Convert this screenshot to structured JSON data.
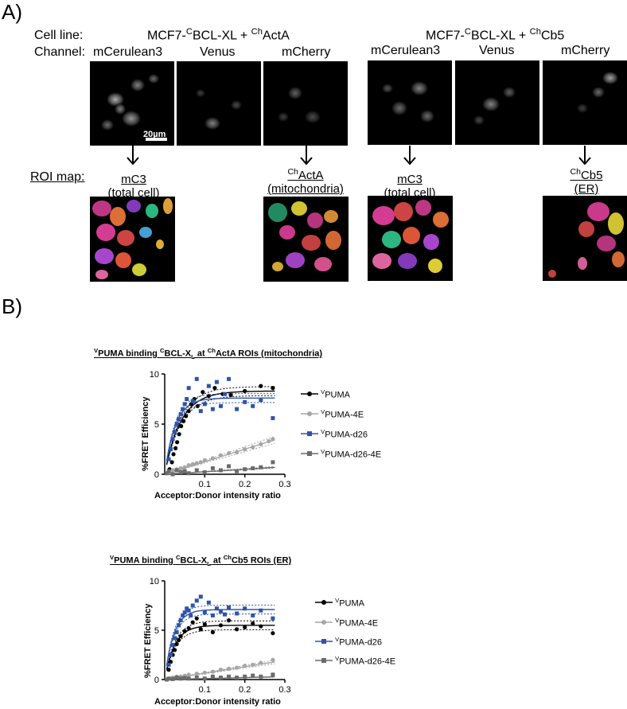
{
  "panel_a": {
    "letter": "A)",
    "row_labels": {
      "cell_line": "Cell line:",
      "channel": "Channel:",
      "roi_map": "ROI map:"
    },
    "groups": [
      {
        "base": "MCF7-",
        "sup1": "C",
        "mid": "BCL-XL + ",
        "sup2": "Ch",
        "tail": "ActA",
        "channels": [
          "mCerulean3",
          "Venus",
          "mCherry"
        ]
      },
      {
        "base": "MCF7-",
        "sup1": "C",
        "mid": "BCL-XL + ",
        "sup2": "Ch",
        "tail": "Cb5",
        "channels": [
          "mCerulean3",
          "Venus",
          "mCherry"
        ]
      }
    ],
    "scale_bar": "20µm",
    "roi_maps": [
      {
        "pre": "",
        "main": "mC3",
        "sub": "(total cell)"
      },
      {
        "pre": "Ch",
        "main": "ActA",
        "sub": "(mitochondria)"
      },
      {
        "pre": "",
        "main": "mC3",
        "sub": "(total cell)"
      },
      {
        "pre": "Ch",
        "main": "Cb5",
        "sub": "(ER)"
      }
    ]
  },
  "panel_b": {
    "letter": "B)",
    "legend": [
      {
        "sup": "V",
        "text": "PUMA",
        "color": "#000000",
        "marker": "circle"
      },
      {
        "sup": "V",
        "text": "PUMA-4E",
        "color": "#a6a6a6",
        "marker": "circle"
      },
      {
        "sup": "V",
        "text": "PUMA-d26",
        "color": "#2f54a8",
        "marker": "square"
      },
      {
        "sup": "V",
        "text": "PUMA-d26-4E",
        "color": "#6b6b6b",
        "marker": "square"
      }
    ]
  },
  "chart_data": [
    {
      "type": "scatter",
      "title": {
        "p1": "V",
        "p2": "PUMA binding ",
        "p3": "C",
        "p4": "BCL-X",
        "p5": "L",
        "p6": " at ",
        "p7": "Ch",
        "p8": "ActA ROIs (mitochondria)"
      },
      "xlabel": "Acceptor:Donor intensity ratio",
      "ylabel": "%FRET Efficiency",
      "xlim": [
        0,
        0.3
      ],
      "ylim": [
        0,
        10
      ],
      "xticks": [
        0.1,
        0.2,
        0.3
      ],
      "xtick_labels": [
        "0.1",
        "0.2",
        "0.3"
      ],
      "yticks": [
        0,
        5,
        10
      ],
      "ytick_labels": [
        "0",
        "5",
        "10"
      ],
      "series": [
        {
          "name": "VPUMA",
          "color": "#000000",
          "marker": "circle",
          "fit": {
            "max": 8.3,
            "k": 0.04
          },
          "x": [
            0.012,
            0.018,
            0.022,
            0.027,
            0.031,
            0.036,
            0.041,
            0.047,
            0.053,
            0.06,
            0.066,
            0.074,
            0.082,
            0.095,
            0.11,
            0.125,
            0.145,
            0.165,
            0.2,
            0.24,
            0.27
          ],
          "y": [
            0.5,
            1.2,
            2.0,
            2.6,
            3.2,
            4.0,
            4.8,
            5.3,
            5.8,
            6.3,
            7.0,
            7.5,
            6.8,
            8.2,
            7.8,
            8.6,
            8.0,
            7.9,
            8.3,
            8.8,
            8.6
          ]
        },
        {
          "name": "VPUMA-4E",
          "color": "#a6a6a6",
          "marker": "circle",
          "fit": {
            "slope": 12.5
          },
          "x": [
            0.01,
            0.02,
            0.03,
            0.04,
            0.05,
            0.06,
            0.07,
            0.08,
            0.09,
            0.1,
            0.12,
            0.14,
            0.16,
            0.18,
            0.2,
            0.22,
            0.24,
            0.26,
            0.27
          ],
          "y": [
            0.2,
            0.4,
            0.5,
            0.6,
            0.7,
            0.9,
            1.0,
            1.1,
            1.2,
            1.4,
            1.6,
            1.9,
            2.1,
            2.2,
            2.5,
            2.7,
            3.0,
            3.3,
            3.5
          ]
        },
        {
          "name": "VPUMA-d26",
          "color": "#2f54a8",
          "marker": "square",
          "fit": {
            "max": 7.6,
            "k": 0.026
          },
          "x": [
            0.01,
            0.015,
            0.02,
            0.025,
            0.03,
            0.035,
            0.04,
            0.045,
            0.05,
            0.055,
            0.06,
            0.07,
            0.08,
            0.09,
            0.1,
            0.11,
            0.12,
            0.13,
            0.14,
            0.15,
            0.16,
            0.18,
            0.2,
            0.22,
            0.24,
            0.27
          ],
          "y": [
            1.5,
            2.5,
            3.5,
            4.2,
            5.0,
            5.5,
            6.0,
            6.5,
            7.0,
            7.5,
            8.6,
            7.3,
            9.5,
            6.3,
            7.0,
            8.8,
            6.5,
            9.2,
            6.8,
            8.0,
            9.5,
            6.5,
            7.2,
            6.8,
            7.4,
            5.6
          ]
        },
        {
          "name": "VPUMA-d26-4E",
          "color": "#6b6b6b",
          "marker": "square",
          "fit": {
            "slope": 2.5
          },
          "x": [
            0.005,
            0.01,
            0.02,
            0.03,
            0.04,
            0.05,
            0.06,
            0.08,
            0.1,
            0.12,
            0.14,
            0.16,
            0.18,
            0.2,
            0.22,
            0.24,
            0.27
          ],
          "y": [
            0.1,
            0.3,
            0.0,
            0.4,
            0.2,
            0.3,
            0.1,
            0.4,
            0.2,
            0.6,
            0.4,
            0.8,
            0.3,
            0.5,
            0.6,
            0.7,
            1.2
          ]
        }
      ]
    },
    {
      "type": "scatter",
      "title": {
        "p1": "V",
        "p2": "PUMA binding ",
        "p3": "C",
        "p4": "BCL-X",
        "p5": "L",
        "p6": " at ",
        "p7": "Ch",
        "p8": "Cb5 ROIs (ER)"
      },
      "xlabel": "Acceptor:Donor intensity ratio",
      "ylabel": "%FRET Efficiency",
      "xlim": [
        0,
        0.3
      ],
      "ylim": [
        0,
        10
      ],
      "xticks": [
        0.1,
        0.2,
        0.3
      ],
      "xtick_labels": [
        "0.1",
        "0.2",
        "0.3"
      ],
      "yticks": [
        0,
        5,
        10
      ],
      "ytick_labels": [
        "0",
        "5",
        "10"
      ],
      "series": [
        {
          "name": "VPUMA",
          "color": "#000000",
          "marker": "circle",
          "fit": {
            "max": 5.5,
            "k": 0.025
          },
          "x": [
            0.01,
            0.015,
            0.02,
            0.025,
            0.03,
            0.035,
            0.04,
            0.05,
            0.06,
            0.07,
            0.08,
            0.09,
            0.1,
            0.12,
            0.14,
            0.16,
            0.18,
            0.2,
            0.22,
            0.24,
            0.27
          ],
          "y": [
            1.0,
            1.8,
            2.5,
            3.0,
            3.6,
            4.0,
            4.4,
            4.9,
            5.2,
            5.8,
            6.2,
            5.1,
            5.6,
            4.8,
            5.5,
            6.0,
            5.1,
            5.3,
            5.7,
            5.4,
            4.7
          ]
        },
        {
          "name": "VPUMA-4E",
          "color": "#a6a6a6",
          "marker": "circle",
          "fit": {
            "slope": 6.5
          },
          "x": [
            0.01,
            0.02,
            0.03,
            0.04,
            0.05,
            0.06,
            0.08,
            0.1,
            0.12,
            0.14,
            0.16,
            0.18,
            0.2,
            0.22,
            0.24,
            0.27
          ],
          "y": [
            0.1,
            0.2,
            0.3,
            0.3,
            0.4,
            0.5,
            0.6,
            0.7,
            0.8,
            1.0,
            1.1,
            1.2,
            1.4,
            1.5,
            1.7,
            2.0
          ]
        },
        {
          "name": "VPUMA-d26",
          "color": "#2f54a8",
          "marker": "square",
          "fit": {
            "max": 7.1,
            "k": 0.022
          },
          "x": [
            0.01,
            0.015,
            0.02,
            0.025,
            0.03,
            0.035,
            0.04,
            0.045,
            0.05,
            0.055,
            0.06,
            0.065,
            0.07,
            0.08,
            0.09,
            0.1,
            0.11,
            0.12,
            0.13,
            0.14,
            0.15,
            0.16,
            0.18,
            0.2,
            0.22,
            0.24,
            0.27
          ],
          "y": [
            1.5,
            2.5,
            3.5,
            4.2,
            4.8,
            5.5,
            6.0,
            6.5,
            6.8,
            7.2,
            7.0,
            6.5,
            7.5,
            8.0,
            8.4,
            6.8,
            7.8,
            6.5,
            7.2,
            6.9,
            6.6,
            7.3,
            6.7,
            7.2,
            6.5,
            7.0,
            6.2
          ]
        },
        {
          "name": "VPUMA-d26-4E",
          "color": "#6b6b6b",
          "marker": "square",
          "fit": {
            "slope": 1.0
          },
          "x": [
            0.005,
            0.01,
            0.02,
            0.03,
            0.04,
            0.05,
            0.06,
            0.08,
            0.1,
            0.12,
            0.14,
            0.16,
            0.18,
            0.2,
            0.22,
            0.24,
            0.27
          ],
          "y": [
            0.0,
            0.1,
            0.05,
            0.2,
            0.1,
            0.15,
            0.1,
            0.2,
            0.1,
            0.3,
            0.2,
            0.3,
            0.2,
            0.3,
            0.4,
            0.3,
            0.5
          ]
        }
      ]
    }
  ]
}
